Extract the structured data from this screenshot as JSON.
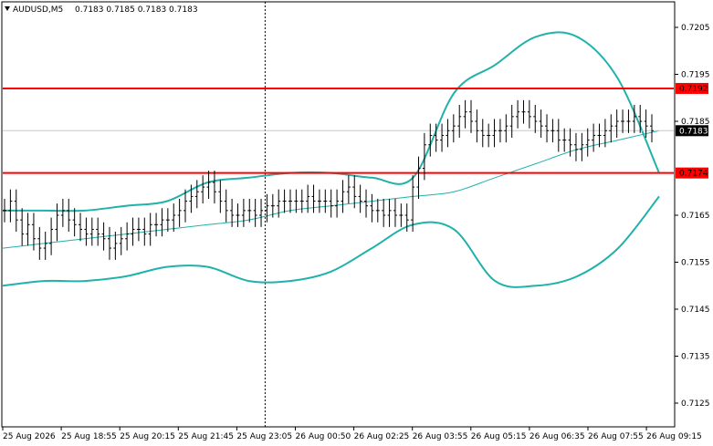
{
  "header": {
    "symbol_timeframe": "AUDUSD,M5",
    "ohlc": "0.7183 0.7185 0.7183 0.7183"
  },
  "colors": {
    "background": "#ffffff",
    "candles": "#000000",
    "bands": "#20b2aa",
    "level_lines": "#ff0000",
    "level_label_bg": "#ff0000",
    "price_label_bg": "#000000",
    "grid": "#c8c8c8"
  },
  "chart_data": {
    "type": "line",
    "symbol": "AUDUSD",
    "timeframe": "M5",
    "y_ticks": [
      "0.7205",
      "0.7195",
      "0.7185",
      "0.7165",
      "0.7155",
      "0.7145",
      "0.7135",
      "0.7125"
    ],
    "ylim": [
      0.7119,
      0.7215
    ],
    "x_ticks": [
      "25 Aug 2026",
      "25 Aug 18:55",
      "25 Aug 20:15",
      "25 Aug 21:45",
      "25 Aug 23:05",
      "26 Aug 00:50",
      "26 Aug 02:25",
      "26 Aug 03:55",
      "26 Aug 05:15",
      "26 Aug 06:35",
      "26 Aug 07:55",
      "26 Aug 09:15"
    ],
    "levels": [
      {
        "value": 0.7192,
        "label": "0.7192",
        "color": "#ff0000"
      },
      {
        "value": 0.7174,
        "label": "0.7174",
        "color": "#ff0000"
      }
    ],
    "current_price": {
      "value": 0.7183,
      "label": "0.7183"
    },
    "vertical_marker_tick": "25 Aug 23:05",
    "close_series": [
      0.7166,
      0.7168,
      0.7164,
      0.7161,
      0.7163,
      0.716,
      0.7158,
      0.7159,
      0.7162,
      0.7165,
      0.7166,
      0.7164,
      0.7163,
      0.7162,
      0.7161,
      0.7162,
      0.7161,
      0.716,
      0.7158,
      0.7159,
      0.716,
      0.7161,
      0.7162,
      0.7162,
      0.7161,
      0.7163,
      0.7163,
      0.7164,
      0.7164,
      0.7165,
      0.7166,
      0.7168,
      0.7169,
      0.717,
      0.7171,
      0.7172,
      0.717,
      0.7168,
      0.7166,
      0.7165,
      0.7165,
      0.7166,
      0.7166,
      0.7165,
      0.7166,
      0.7167,
      0.7167,
      0.7168,
      0.7168,
      0.7168,
      0.7168,
      0.7168,
      0.7169,
      0.7168,
      0.7168,
      0.7168,
      0.7167,
      0.7168,
      0.717,
      0.7171,
      0.7169,
      0.7168,
      0.7167,
      0.7166,
      0.7166,
      0.7165,
      0.7166,
      0.7165,
      0.7165,
      0.7164,
      0.7171,
      0.7175,
      0.718,
      0.7182,
      0.7181,
      0.7182,
      0.7183,
      0.7184,
      0.7186,
      0.7187,
      0.7185,
      0.7183,
      0.7182,
      0.7182,
      0.7183,
      0.7183,
      0.7184,
      0.7186,
      0.7187,
      0.7187,
      0.7186,
      0.7185,
      0.7184,
      0.7183,
      0.7183,
      0.7181,
      0.7181,
      0.718,
      0.7179,
      0.718,
      0.7181,
      0.7182,
      0.7182,
      0.7183,
      0.7184,
      0.7185,
      0.7185,
      0.7185,
      0.7186,
      0.7185,
      0.7184,
      0.7183
    ],
    "series": [
      {
        "values": [
          0.7158,
          0.7159,
          0.716,
          0.7161,
          0.7162,
          0.7163,
          0.7164,
          0.7166,
          0.7167,
          0.7168,
          0.7169,
          0.717,
          0.7173,
          0.7176,
          0.7179,
          0.7181,
          0.7183
        ]
      },
      {
        "values": [
          0.7166,
          0.7166,
          0.7166,
          0.7167,
          0.7168,
          0.7172,
          0.7173,
          0.7174,
          0.7174,
          0.7173,
          0.7173,
          0.7191,
          0.7197,
          0.7203,
          0.7203,
          0.7194,
          0.7174
        ]
      },
      {
        "values": [
          0.715,
          0.7151,
          0.7151,
          0.7152,
          0.7154,
          0.7154,
          0.7151,
          0.7151,
          0.7153,
          0.7158,
          0.7163,
          0.7162,
          0.7151,
          0.715,
          0.7152,
          0.7158,
          0.7169
        ]
      }
    ]
  }
}
